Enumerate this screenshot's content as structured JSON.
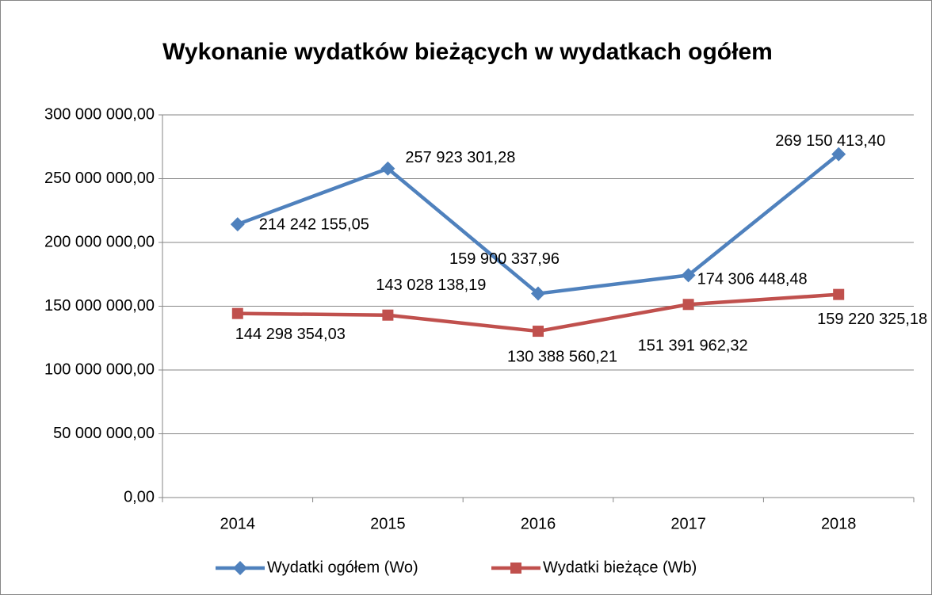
{
  "chart_data": {
    "type": "line",
    "title": "Wykonanie wydatków bieżących w wydatkach ogółem",
    "categories": [
      "2014",
      "2015",
      "2016",
      "2017",
      "2018"
    ],
    "series": [
      {
        "name": "Wydatki ogółem (Wo)",
        "color": "#4f81bd",
        "marker": "diamond",
        "values": [
          214242155.05,
          257923301.28,
          159900337.96,
          174306448.48,
          269150413.4
        ],
        "value_labels": [
          "214 242 155,05",
          "257 923 301,28",
          "159 900 337,96",
          "174 306 448,48",
          "269 150 413,40"
        ]
      },
      {
        "name": "Wydatki bieżące (Wb)",
        "color": "#c0504d",
        "marker": "square",
        "values": [
          144298354.03,
          143028138.19,
          130388560.21,
          151391962.32,
          159220325.18
        ],
        "value_labels": [
          "144 298 354,03",
          "143 028 138,19",
          "130 388 560,21",
          "151 391 962,32",
          "159 220 325,18"
        ]
      }
    ],
    "ylim": [
      0,
      300000000
    ],
    "yticks": [
      {
        "value": 0,
        "label": "0,00"
      },
      {
        "value": 50000000,
        "label": "50 000 000,00"
      },
      {
        "value": 100000000,
        "label": "100 000 000,00"
      },
      {
        "value": 150000000,
        "label": "150 000 000,00"
      },
      {
        "value": 200000000,
        "label": "200 000 000,00"
      },
      {
        "value": 250000000,
        "label": "250 000 000,00"
      },
      {
        "value": 300000000,
        "label": "300 000 000,00"
      }
    ],
    "grid": true,
    "legend": "bottom"
  }
}
